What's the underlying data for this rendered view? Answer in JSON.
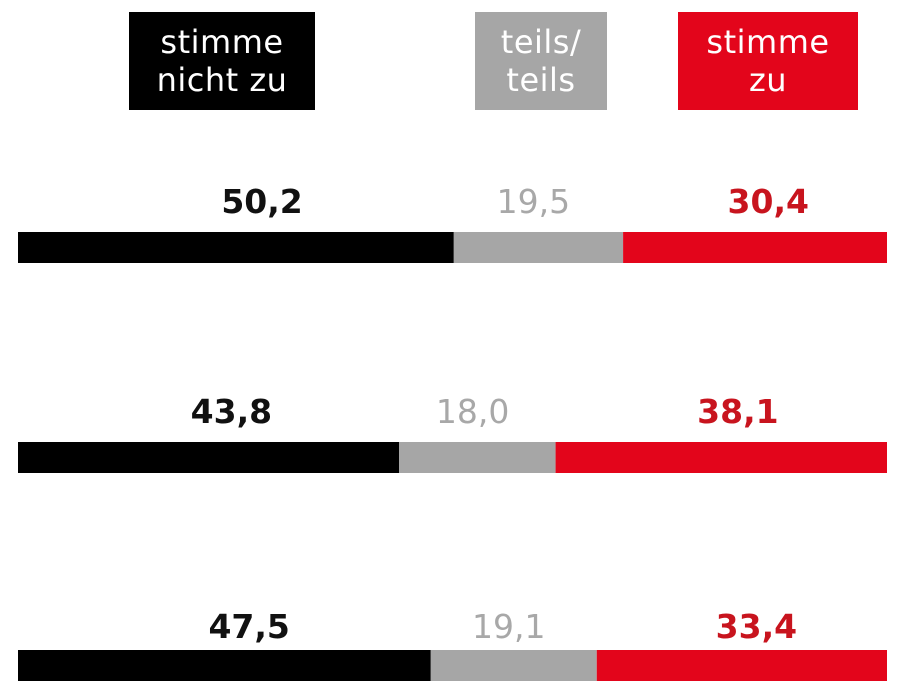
{
  "legend": [
    {
      "line1": "stimme",
      "line2": "nicht zu",
      "color": "#000000",
      "text_color": "#ffffff"
    },
    {
      "line1": "teils/",
      "line2": "teils",
      "color": "#a6a6a6",
      "text_color": "#ffffff"
    },
    {
      "line1": "stimme",
      "line2": "zu",
      "color": "#e3051b",
      "text_color": "#ffffff"
    }
  ],
  "chart_data": {
    "type": "bar",
    "stacked": true,
    "orientation": "horizontal",
    "categories": [
      "",
      "",
      ""
    ],
    "series": [
      {
        "name": "stimme nicht zu",
        "color": "#000000",
        "label_color": "#111111",
        "values": [
          50.2,
          43.8,
          47.5
        ],
        "labels": [
          "50,2",
          "43,8",
          "47,5"
        ]
      },
      {
        "name": "teils/teils",
        "color": "#a6a6a6",
        "label_color": "#a8a8a8",
        "values": [
          19.5,
          18.0,
          19.1
        ],
        "labels": [
          "19,5",
          "18,0",
          "19,1"
        ]
      },
      {
        "name": "stimme zu",
        "color": "#e3051b",
        "label_color": "#c8141e",
        "values": [
          30.4,
          38.1,
          33.4
        ],
        "labels": [
          "30,4",
          "38,1",
          "33,4"
        ]
      }
    ],
    "xlim": [
      0,
      100
    ],
    "grid": false
  }
}
